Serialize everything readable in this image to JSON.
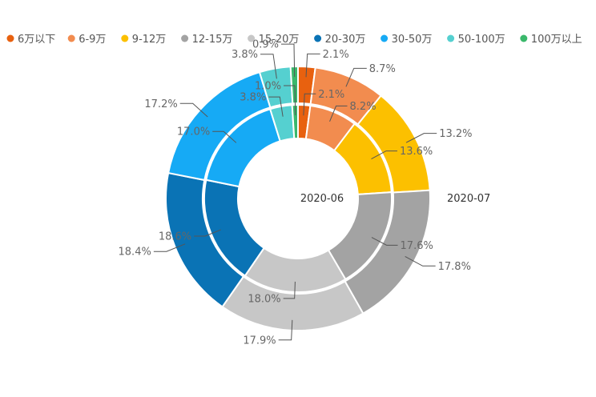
{
  "chart_data": {
    "type": "pie",
    "subtype": "nested-donut",
    "categories": [
      "6万以下",
      "6-9万",
      "9-12万",
      "12-15万",
      "15-20万",
      "20-30万",
      "30-50万",
      "50-100万",
      "100万以上"
    ],
    "colors": [
      "#e8610f",
      "#f28c4f",
      "#fcc000",
      "#a3a3a3",
      "#c7c7c7",
      "#0a73b5",
      "#16aaf5",
      "#55d0d0",
      "#3ab86b"
    ],
    "series": [
      {
        "name": "2020-06",
        "ring": "inner",
        "values": [
          2.1,
          8.2,
          13.6,
          17.6,
          18.0,
          18.6,
          17.0,
          3.8,
          1.0
        ]
      },
      {
        "name": "2020-07",
        "ring": "outer",
        "values": [
          2.1,
          8.7,
          13.2,
          17.8,
          17.9,
          18.4,
          17.2,
          3.8,
          0.9
        ]
      }
    ],
    "value_suffix": "%",
    "legend_position": "top"
  }
}
